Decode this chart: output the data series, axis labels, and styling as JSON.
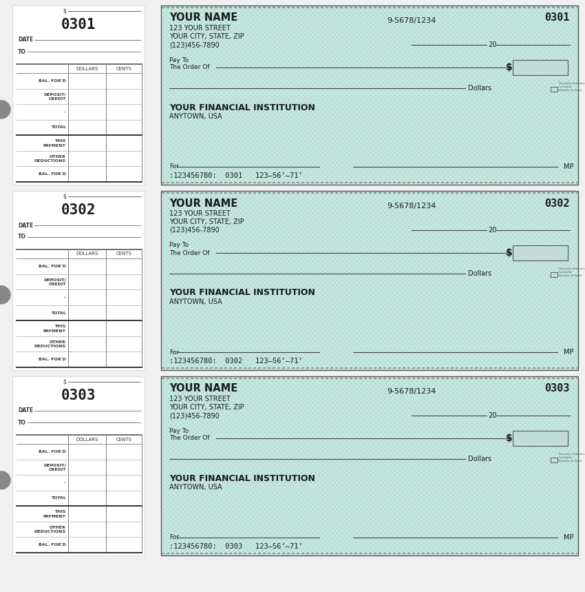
{
  "bg_color": "#f0f0f0",
  "check_bg": "#c8e8e0",
  "check_border": "#666666",
  "stub_bg": "#ffffff",
  "checks": [
    {
      "number": "0301",
      "micr": ":123456780:  0301   123—56’—71’"
    },
    {
      "number": "0302",
      "micr": ":123456780:  0302   123—56’—71’"
    },
    {
      "number": "0303",
      "micr": ":123456780:  0303   123—56’—71’"
    }
  ],
  "name": "YOUR NAME",
  "street": "123 YOUR STREET",
  "city": "YOUR CITY, STATE, ZIP",
  "phone": "(123)456-7890",
  "routing": "9-5678/1234",
  "bank_name": "YOUR FINANCIAL INSTITUTION",
  "bank_city": "ANYTOWN, USA",
  "stub_labels": [
    "BAL. FOR'D",
    "DEPOSIT/\nCREDIT",
    "-",
    "TOTAL",
    "THIS\nPAYMENT",
    "OTHER\nDEDUCTIONS",
    "BAL. FOR'D"
  ],
  "col_headers": [
    "DOLLARS",
    "CENTS"
  ],
  "dark_rows": [
    3,
    6
  ],
  "pattern_color": "#a0d4cc",
  "line_color": "#444444",
  "text_color": "#1a1a1a",
  "stub_line_color": "#888888",
  "micr_text": [
    ":123456780:  0301   123—56’—71’",
    ":123456780:  0302   123—56’—71’",
    ":123456780:  0303   123—56’—71’"
  ]
}
